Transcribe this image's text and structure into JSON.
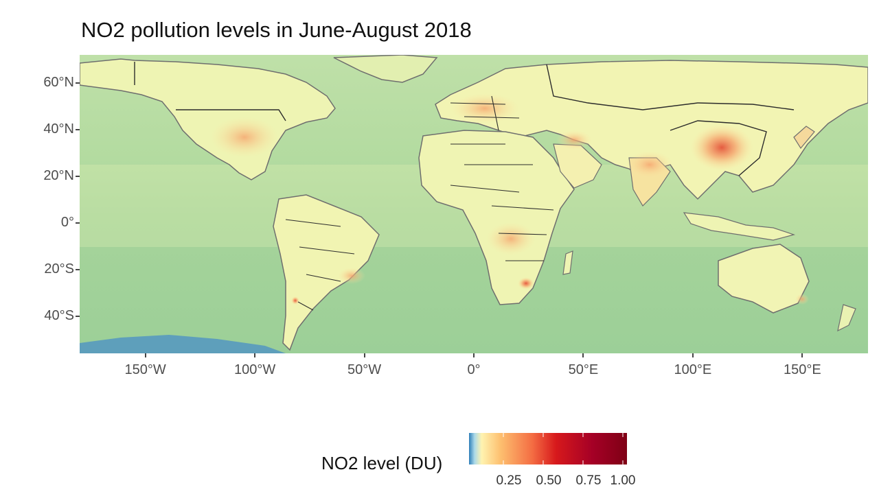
{
  "title": "NO2 pollution levels in June-August 2018",
  "map": {
    "lon_range": [
      -180,
      180
    ],
    "lat_range": [
      -56,
      72
    ],
    "y_ticks": [
      {
        "lat": 60,
        "label": "60°N"
      },
      {
        "lat": 40,
        "label": "40°N"
      },
      {
        "lat": 20,
        "label": "20°N"
      },
      {
        "lat": 0,
        "label": "0°"
      },
      {
        "lat": -20,
        "label": "20°S"
      },
      {
        "lat": -40,
        "label": "40°S"
      }
    ],
    "x_ticks": [
      {
        "lon": -150,
        "label": "150°W"
      },
      {
        "lon": -100,
        "label": "100°W"
      },
      {
        "lon": -50,
        "label": "50°W"
      },
      {
        "lon": 0,
        "label": "0°"
      },
      {
        "lon": 50,
        "label": "50°E"
      },
      {
        "lon": 100,
        "label": "100°E"
      },
      {
        "lon": 150,
        "label": "150°E"
      }
    ],
    "colors": {
      "ocean": "#a9d69c",
      "land_low": "#f0f5b5",
      "mid": "#fde6a3",
      "high": "#f6a26c",
      "very_high": "#e24d3c",
      "border": "#2b2b2b",
      "coast": "#6e6e6e",
      "antarctic_low": "#4a8fc7"
    }
  },
  "legend": {
    "title": "NO2 level (DU)",
    "labels": [
      "0.25",
      "0.50",
      "0.75",
      "1.00"
    ],
    "gradient": [
      "#2e7fb8",
      "#abd9e9",
      "#fff3b0",
      "#fdbf6f",
      "#f46d43",
      "#d7191c",
      "#a50026",
      "#7f0015"
    ]
  }
}
